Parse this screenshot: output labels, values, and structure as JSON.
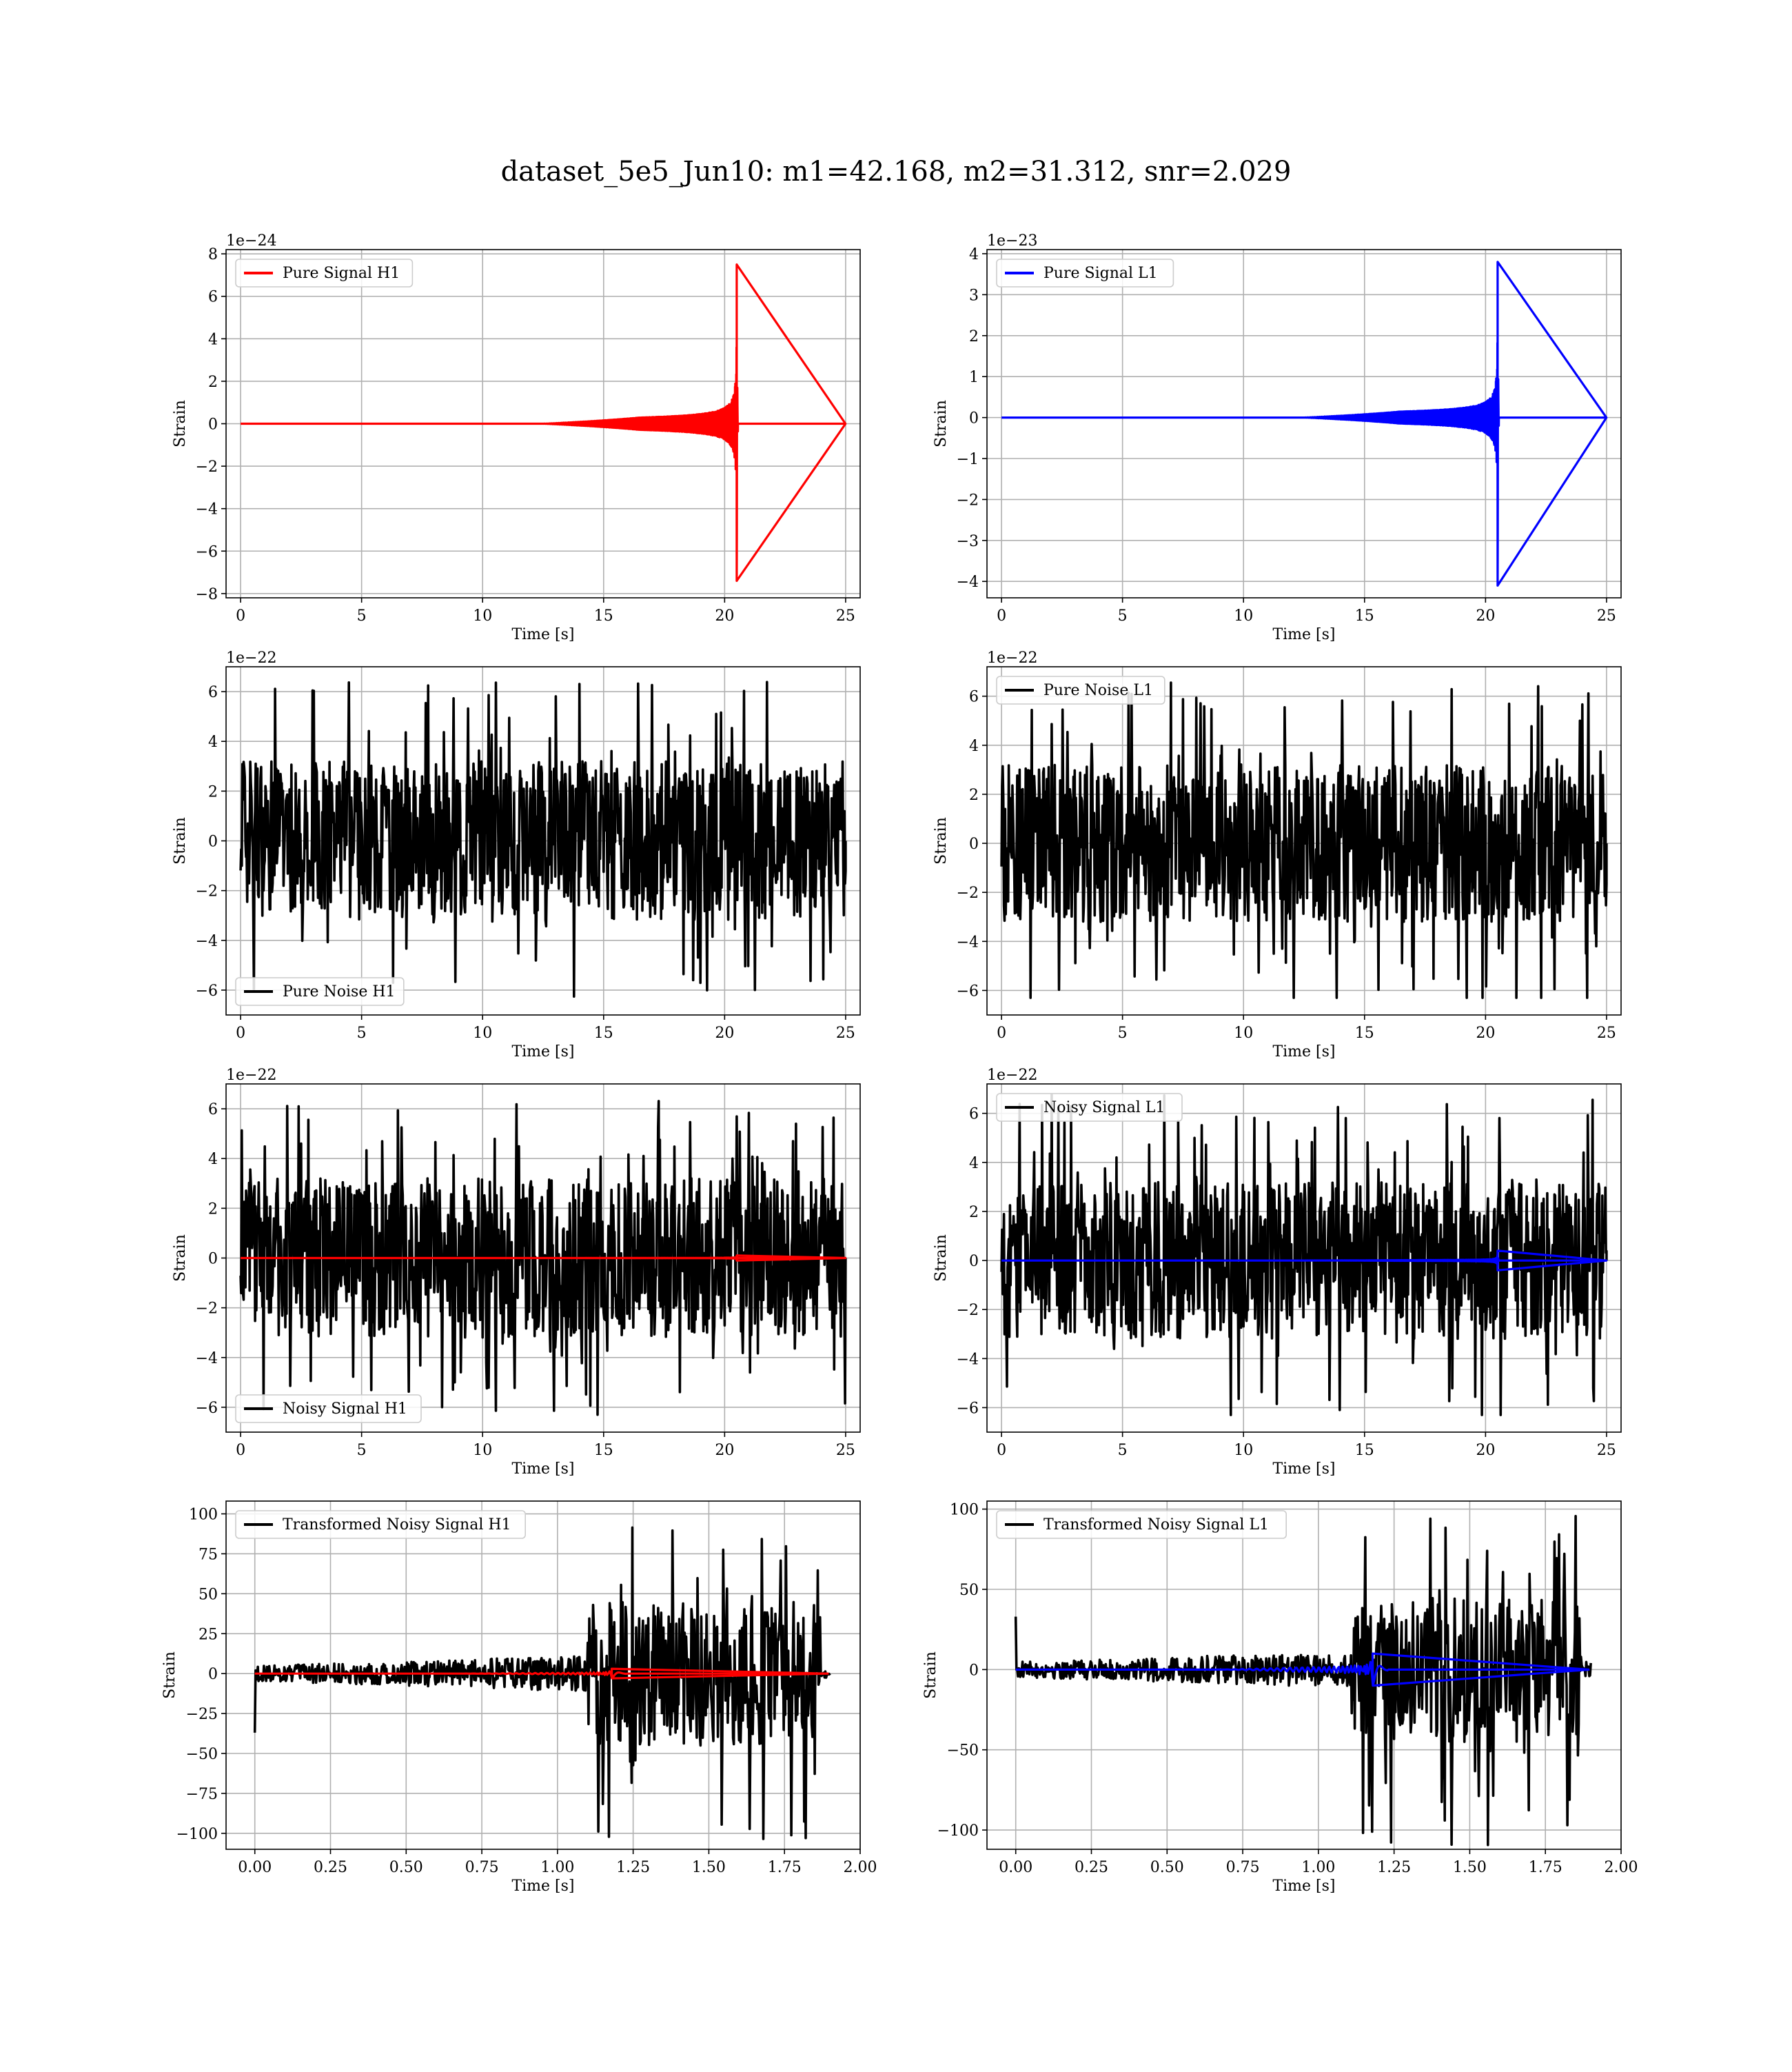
{
  "figure": {
    "title": "dataset_5e5_Jun10: m1=42.168, m2=31.312, snr=2.029"
  },
  "colors": {
    "h1_signal": "#ff0000",
    "l1_signal": "#0000ff",
    "noise": "#000000",
    "grid": "#b0b0b0"
  },
  "chart_data": [
    {
      "id": "pure-signal-h1",
      "type": "line",
      "xlabel": "Time [s]",
      "ylabel": "Strain",
      "offset_text": "1e−24",
      "xlim": [
        -0.6,
        25.6
      ],
      "ylim": [
        -8.2,
        8.2
      ],
      "xticks": [
        0,
        5,
        10,
        15,
        20,
        25
      ],
      "xtick_labels": [
        "0",
        "5",
        "10",
        "15",
        "20",
        "25"
      ],
      "yticks": [
        -8,
        -6,
        -4,
        -2,
        0,
        2,
        4,
        6,
        8
      ],
      "ytick_labels": [
        "−8",
        "−6",
        "−4",
        "−2",
        "0",
        "2",
        "4",
        "6",
        "8"
      ],
      "grid": true,
      "legend_position": "upper left",
      "series": [
        {
          "name": "Pure Signal H1",
          "color": "#ff0000",
          "kind": "chirp",
          "x_start": 0,
          "x_merger": 20.5,
          "x_end": 25,
          "peak_amplitude": 7.5,
          "min_value": -7.4
        }
      ]
    },
    {
      "id": "pure-signal-l1",
      "type": "line",
      "xlabel": "Time [s]",
      "ylabel": "Strain",
      "offset_text": "1e−23",
      "xlim": [
        -0.6,
        25.6
      ],
      "ylim": [
        -4.4,
        4.1
      ],
      "xticks": [
        0,
        5,
        10,
        15,
        20,
        25
      ],
      "xtick_labels": [
        "0",
        "5",
        "10",
        "15",
        "20",
        "25"
      ],
      "yticks": [
        -4,
        -3,
        -2,
        -1,
        0,
        1,
        2,
        3,
        4
      ],
      "ytick_labels": [
        "−4",
        "−3",
        "−2",
        "−1",
        "0",
        "1",
        "2",
        "3",
        "4"
      ],
      "grid": true,
      "legend_position": "upper left",
      "series": [
        {
          "name": "Pure Signal L1",
          "color": "#0000ff",
          "kind": "chirp",
          "x_start": 0,
          "x_merger": 20.5,
          "x_end": 25,
          "peak_amplitude": 3.8,
          "min_value": -4.1
        }
      ]
    },
    {
      "id": "pure-noise-h1",
      "type": "line",
      "xlabel": "Time [s]",
      "ylabel": "Strain",
      "offset_text": "1e−22",
      "xlim": [
        -0.6,
        25.6
      ],
      "ylim": [
        -7.0,
        7.0
      ],
      "xticks": [
        0,
        5,
        10,
        15,
        20,
        25
      ],
      "xtick_labels": [
        "0",
        "5",
        "10",
        "15",
        "20",
        "25"
      ],
      "yticks": [
        -6,
        -4,
        -2,
        0,
        2,
        4,
        6
      ],
      "ytick_labels": [
        "−6",
        "−4",
        "−2",
        "0",
        "2",
        "4",
        "6"
      ],
      "grid": true,
      "legend_position": "lower left",
      "series": [
        {
          "name": "Pure Noise H1",
          "color": "#000000",
          "kind": "noise",
          "x_start": 0,
          "x_end": 25,
          "envelope_max": 6.4,
          "envelope_min": -6.3,
          "band": 3.2
        }
      ]
    },
    {
      "id": "pure-noise-l1",
      "type": "line",
      "xlabel": "Time [s]",
      "ylabel": "Strain",
      "offset_text": "1e−22",
      "xlim": [
        -0.6,
        25.6
      ],
      "ylim": [
        -7.0,
        7.2
      ],
      "xticks": [
        0,
        5,
        10,
        15,
        20,
        25
      ],
      "xtick_labels": [
        "0",
        "5",
        "10",
        "15",
        "20",
        "25"
      ],
      "yticks": [
        -6,
        -4,
        -2,
        0,
        2,
        4,
        6
      ],
      "ytick_labels": [
        "−6",
        "−4",
        "−2",
        "0",
        "2",
        "4",
        "6"
      ],
      "grid": true,
      "legend_position": "upper left",
      "series": [
        {
          "name": "Pure Noise L1",
          "color": "#000000",
          "kind": "noise",
          "x_start": 0,
          "x_end": 25,
          "envelope_max": 6.8,
          "envelope_min": -6.3,
          "band": 3.2
        }
      ]
    },
    {
      "id": "noisy-signal-h1",
      "type": "line",
      "xlabel": "Time [s]",
      "ylabel": "Strain",
      "offset_text": "1e−22",
      "xlim": [
        -0.6,
        25.6
      ],
      "ylim": [
        -7.0,
        7.0
      ],
      "xticks": [
        0,
        5,
        10,
        15,
        20,
        25
      ],
      "xtick_labels": [
        "0",
        "5",
        "10",
        "15",
        "20",
        "25"
      ],
      "yticks": [
        -6,
        -4,
        -2,
        0,
        2,
        4,
        6
      ],
      "ytick_labels": [
        "−6",
        "−4",
        "−2",
        "0",
        "2",
        "4",
        "6"
      ],
      "grid": true,
      "legend_position": "lower left",
      "series": [
        {
          "name": "Noisy Signal H1",
          "color": "#000000",
          "kind": "noise",
          "x_start": 0,
          "x_end": 25,
          "envelope_max": 6.4,
          "envelope_min": -6.3,
          "band": 3.2
        },
        {
          "color": "#ff0000",
          "kind": "chirp",
          "x_start": 0,
          "x_merger": 20.5,
          "x_end": 25,
          "peak_amplitude": 0.1,
          "min_value": -0.1
        }
      ]
    },
    {
      "id": "noisy-signal-l1",
      "type": "line",
      "xlabel": "Time [s]",
      "ylabel": "Strain",
      "offset_text": "1e−22",
      "xlim": [
        -0.6,
        25.6
      ],
      "ylim": [
        -7.0,
        7.2
      ],
      "xticks": [
        0,
        5,
        10,
        15,
        20,
        25
      ],
      "xtick_labels": [
        "0",
        "5",
        "10",
        "15",
        "20",
        "25"
      ],
      "yticks": [
        -6,
        -4,
        -2,
        0,
        2,
        4,
        6
      ],
      "ytick_labels": [
        "−6",
        "−4",
        "−2",
        "0",
        "2",
        "4",
        "6"
      ],
      "grid": true,
      "legend_position": "upper left",
      "series": [
        {
          "name": "Noisy Signal L1",
          "color": "#000000",
          "kind": "noise",
          "x_start": 0,
          "x_end": 25,
          "envelope_max": 6.8,
          "envelope_min": -6.3,
          "band": 3.2
        },
        {
          "color": "#0000ff",
          "kind": "chirp",
          "x_start": 0,
          "x_merger": 20.5,
          "x_end": 25,
          "peak_amplitude": 0.4,
          "min_value": -0.4
        }
      ]
    },
    {
      "id": "transformed-noisy-signal-h1",
      "type": "line",
      "xlabel": "Time [s]",
      "ylabel": "Strain",
      "offset_text": "",
      "xlim": [
        -0.095,
        2.0
      ],
      "ylim": [
        -110,
        108
      ],
      "xticks": [
        0,
        0.25,
        0.5,
        0.75,
        1.0,
        1.25,
        1.5,
        1.75,
        2.0
      ],
      "xtick_labels": [
        "0.00",
        "0.25",
        "0.50",
        "0.75",
        "1.00",
        "1.25",
        "1.50",
        "1.75",
        "2.00"
      ],
      "yticks": [
        -100,
        -75,
        -50,
        -25,
        0,
        25,
        50,
        75,
        100
      ],
      "ytick_labels": [
        "−100",
        "−75",
        "−50",
        "−25",
        "0",
        "25",
        "50",
        "75",
        "100"
      ],
      "grid": true,
      "legend_position": "upper left",
      "series": [
        {
          "name": "Transformed Noisy Signal H1",
          "color": "#000000",
          "kind": "whitened",
          "x_start": 0,
          "x_jump": 1.1,
          "x_end": 1.9,
          "early_band": 8,
          "late_band": 45,
          "envelope_max": 98,
          "envelope_min": -105,
          "x_drop": 1.87,
          "late_tail_band": 4,
          "start_spike": -37
        },
        {
          "color": "#ff0000",
          "kind": "chirp",
          "x_start": 0,
          "x_merger": 1.18,
          "x_end": 1.9,
          "peak_amplitude": 3,
          "min_value": -3
        }
      ]
    },
    {
      "id": "transformed-noisy-signal-l1",
      "type": "line",
      "xlabel": "Time [s]",
      "ylabel": "Strain",
      "offset_text": "",
      "xlim": [
        -0.095,
        2.0
      ],
      "ylim": [
        -112,
        105
      ],
      "xticks": [
        0,
        0.25,
        0.5,
        0.75,
        1.0,
        1.25,
        1.5,
        1.75,
        2.0
      ],
      "xtick_labels": [
        "0.00",
        "0.25",
        "0.50",
        "0.75",
        "1.00",
        "1.25",
        "1.50",
        "1.75",
        "2.00"
      ],
      "yticks": [
        -100,
        -50,
        0,
        50,
        100
      ],
      "ytick_labels": [
        "−100",
        "−50",
        "0",
        "50",
        "100"
      ],
      "grid": true,
      "legend_position": "upper left",
      "series": [
        {
          "name": "Transformed Noisy Signal L1",
          "color": "#000000",
          "kind": "whitened",
          "x_start": 0,
          "x_jump": 1.11,
          "x_end": 1.9,
          "early_band": 8,
          "late_band": 45,
          "envelope_max": 100,
          "envelope_min": -110,
          "x_drop": 1.87,
          "late_tail_band": 5,
          "start_spike": 33
        },
        {
          "color": "#0000ff",
          "kind": "chirp",
          "x_start": 0,
          "x_merger": 1.18,
          "x_end": 1.9,
          "peak_amplitude": 10,
          "min_value": -10
        }
      ]
    }
  ]
}
